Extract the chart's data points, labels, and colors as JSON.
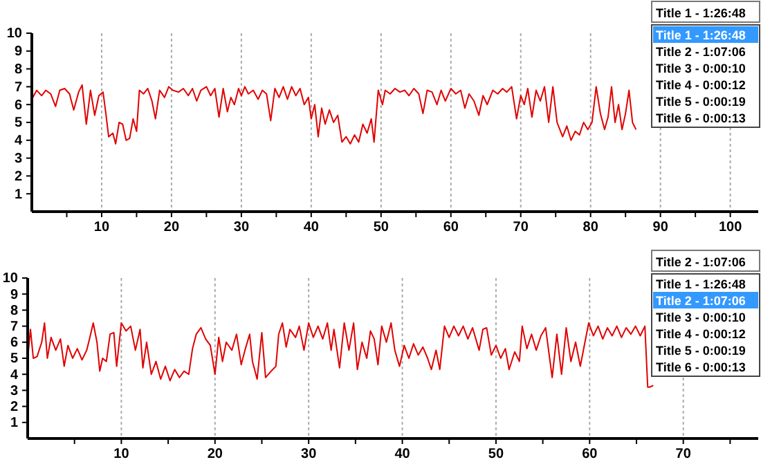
{
  "chart_data": [
    {
      "type": "line",
      "grid": "x",
      "xlim": [
        0,
        104
      ],
      "ylim": [
        0,
        10
      ],
      "xticks": [
        {
          "value": 5,
          "label": null
        },
        10,
        {
          "value": 15,
          "label": null
        },
        20,
        {
          "value": 25,
          "label": null
        },
        30,
        {
          "value": 35,
          "label": null
        },
        40,
        {
          "value": 45,
          "label": null
        },
        50,
        {
          "value": 55,
          "label": null
        },
        60,
        {
          "value": 65,
          "label": null
        },
        70,
        {
          "value": 75,
          "label": null
        },
        80,
        {
          "value": 85,
          "label": null
        },
        90,
        {
          "value": 95,
          "label": null
        },
        100
      ],
      "yticks": [
        1,
        2,
        3,
        4,
        5,
        6,
        7,
        8,
        9,
        10
      ],
      "annotations": [
        "Title 1 - 1:26:48",
        "Title 1 - 1:26:48",
        "Title 2 - 1:07:06",
        "Title 3 - 0:00:10",
        "Title 4 - 0:00:12",
        "Title 5 - 0:00:19",
        "Title 6 - 0:00:13"
      ],
      "series": [
        {
          "color": "#e00000",
          "x": [
            0,
            0.7,
            1.4,
            2,
            2.7,
            3.4,
            4,
            4.7,
            5.4,
            6,
            6.7,
            7.2,
            7.8,
            8.4,
            9,
            9.6,
            10.2,
            10.6,
            11,
            11.6,
            12,
            12.5,
            13,
            13.5,
            14,
            14.5,
            15,
            15.4,
            16,
            16.6,
            17.2,
            17.7,
            18.3,
            19,
            19.6,
            20.2,
            21,
            21.7,
            22.4,
            23,
            23.6,
            24.2,
            25,
            25.6,
            26.2,
            26.8,
            27.4,
            28,
            28.5,
            29,
            29.6,
            30,
            30.5,
            31,
            31.7,
            32.4,
            33,
            33.6,
            34.2,
            34.8,
            35.4,
            36,
            36.6,
            37.2,
            37.8,
            38.4,
            39,
            39.6,
            40,
            40.5,
            41,
            41.5,
            42,
            42.6,
            43.2,
            43.8,
            44.4,
            45,
            45.6,
            46.2,
            46.8,
            47.4,
            48,
            48.6,
            49,
            49.6,
            50.2,
            50.6,
            51.3,
            52,
            52.7,
            53.4,
            54,
            54.7,
            55.4,
            56,
            56.6,
            57.3,
            58,
            58.6,
            59.2,
            60,
            60.7,
            61.4,
            62,
            62.6,
            63.3,
            64,
            64.6,
            65.2,
            66,
            66.7,
            67.4,
            68,
            68.7,
            69.4,
            70,
            70.5,
            71,
            71.6,
            72.2,
            72.8,
            73.4,
            74,
            74.6,
            75.2,
            75.6,
            76,
            76.6,
            77.2,
            77.8,
            78.4,
            79,
            79.6,
            80.2,
            80.8,
            81.4,
            82,
            82.5,
            83,
            83.5,
            84,
            84.5,
            85,
            85.5,
            86,
            86.5
          ],
          "values": [
            6.3,
            6.8,
            6.5,
            6.8,
            6.6,
            5.9,
            6.8,
            6.9,
            6.6,
            5.7,
            6.7,
            7.1,
            4.9,
            6.8,
            5.4,
            6.5,
            6.7,
            5.5,
            4.2,
            4.4,
            3.8,
            5.0,
            4.9,
            4.0,
            4.1,
            5.2,
            4.5,
            6.8,
            6.6,
            6.9,
            6.2,
            5.2,
            6.8,
            6.4,
            7.0,
            6.8,
            6.7,
            6.9,
            6.5,
            6.9,
            6.2,
            6.8,
            7.0,
            6.5,
            6.9,
            5.3,
            6.9,
            5.6,
            6.4,
            6.0,
            6.9,
            6.5,
            7.0,
            6.6,
            6.8,
            6.3,
            6.8,
            6.6,
            5.1,
            6.9,
            6.4,
            7.0,
            6.3,
            7.0,
            6.5,
            6.9,
            6.0,
            6.4,
            5.2,
            6.0,
            4.2,
            5.8,
            4.9,
            5.7,
            5.0,
            5.4,
            3.9,
            4.2,
            3.8,
            4.3,
            3.9,
            4.9,
            4.4,
            5.2,
            3.9,
            6.8,
            6.0,
            6.8,
            6.6,
            6.9,
            6.7,
            6.8,
            6.5,
            6.9,
            6.6,
            5.5,
            6.8,
            6.7,
            6.0,
            6.8,
            6.2,
            6.9,
            6.6,
            6.8,
            5.8,
            6.6,
            6.2,
            5.4,
            6.5,
            6.0,
            6.8,
            6.6,
            6.9,
            6.7,
            7.0,
            5.2,
            6.5,
            6.0,
            6.9,
            5.3,
            6.8,
            6.2,
            7.0,
            5.0,
            7.0,
            5.0,
            4.6,
            4.2,
            4.8,
            4.0,
            4.5,
            4.3,
            5.0,
            4.6,
            5.0,
            7.0,
            5.5,
            4.6,
            5.3,
            7.0,
            5.0,
            6.0,
            4.6,
            5.5,
            6.8,
            5.0,
            4.6
          ]
        }
      ]
    },
    {
      "type": "line",
      "grid": "x",
      "xlim": [
        0,
        78
      ],
      "ylim": [
        0,
        10
      ],
      "xticks": [
        {
          "value": 5,
          "label": null
        },
        10,
        {
          "value": 15,
          "label": null
        },
        20,
        {
          "value": 25,
          "label": null
        },
        30,
        {
          "value": 35,
          "label": null
        },
        40,
        {
          "value": 45,
          "label": null
        },
        50,
        {
          "value": 55,
          "label": null
        },
        60,
        {
          "value": 65,
          "label": null
        },
        70,
        {
          "value": 75,
          "label": null
        }
      ],
      "yticks": [
        1,
        2,
        3,
        4,
        5,
        6,
        7,
        8,
        9,
        10
      ],
      "annotations": [
        "Title 2 - 1:07:06",
        "Title 1 - 1:26:48",
        "Title 2 - 1:07:06",
        "Title 3 - 0:00:10",
        "Title 4 - 0:00:12",
        "Title 5 - 0:00:19",
        "Title 6 - 0:00:13"
      ],
      "series": [
        {
          "color": "#e00000",
          "x": [
            0,
            0.3,
            0.6,
            1,
            1.5,
            1.8,
            2.1,
            2.5,
            3,
            3.5,
            3.9,
            4.3,
            4.8,
            5.3,
            5.8,
            6.3,
            6.6,
            7,
            7.4,
            7.7,
            8,
            8.4,
            8.8,
            9.2,
            9.5,
            10,
            10.5,
            11,
            11.5,
            12,
            12.3,
            12.7,
            13.2,
            13.7,
            14.2,
            14.7,
            15.2,
            15.7,
            16.2,
            16.7,
            17.2,
            17.6,
            18,
            18.5,
            19,
            19.5,
            20,
            20.4,
            20.8,
            21.2,
            21.8,
            22.3,
            22.8,
            23.2,
            23.7,
            24,
            24.5,
            25,
            25.4,
            26,
            26.5,
            26.8,
            27.2,
            27.6,
            28,
            28.6,
            29,
            29.5,
            30,
            30.5,
            31,
            31.5,
            32,
            32.4,
            32.7,
            33.3,
            33.8,
            34.3,
            34.8,
            35.2,
            35.7,
            36.2,
            36.6,
            37,
            37.4,
            37.8,
            38.3,
            38.8,
            39.2,
            39.7,
            40.2,
            40.7,
            41.2,
            41.7,
            42.2,
            42.7,
            43.1,
            43.6,
            44,
            44.5,
            45,
            45.5,
            46,
            46.5,
            47,
            47.5,
            48.2,
            48.6,
            49,
            49.5,
            50,
            50.5,
            51,
            51.4,
            52,
            52.5,
            52.8,
            53.3,
            53.8,
            54.3,
            54.8,
            55.3,
            56,
            56.5,
            57,
            57.5,
            58,
            58.5,
            59,
            59.5,
            59.9,
            60.4,
            60.9,
            61.4,
            61.9,
            62.4,
            62.9,
            63.4,
            63.9,
            64.4,
            64.9,
            65.4,
            65.9,
            66.2,
            66.4,
            66.8
          ],
          "values": [
            5.0,
            6.8,
            5.0,
            5.1,
            6.0,
            7.2,
            5.0,
            6.3,
            5.5,
            6.2,
            4.5,
            5.8,
            5.0,
            5.6,
            4.9,
            5.5,
            6.2,
            7.2,
            6.0,
            4.2,
            5.0,
            4.8,
            6.5,
            6.6,
            4.5,
            7.2,
            6.7,
            7.0,
            5.5,
            6.8,
            4.4,
            6.0,
            4.0,
            4.8,
            3.7,
            4.5,
            3.6,
            4.3,
            3.8,
            4.2,
            4.0,
            5.6,
            6.5,
            6.9,
            6.2,
            5.8,
            4.0,
            6.3,
            4.8,
            6.0,
            5.5,
            6.5,
            4.6,
            5.5,
            6.5,
            4.8,
            3.7,
            6.6,
            3.8,
            4.2,
            4.5,
            6.5,
            7.2,
            5.7,
            6.8,
            6.3,
            7.0,
            5.5,
            7.2,
            6.3,
            7.0,
            6.2,
            7.2,
            5.5,
            6.8,
            4.4,
            7.2,
            5.5,
            7.2,
            4.3,
            6.0,
            5.0,
            6.7,
            6.2,
            4.6,
            7.0,
            6.0,
            7.2,
            5.5,
            4.5,
            5.8,
            5.0,
            5.9,
            5.2,
            5.7,
            5.0,
            4.3,
            5.5,
            4.3,
            7.0,
            6.3,
            7.0,
            6.4,
            7.0,
            6.2,
            6.9,
            5.5,
            6.8,
            6.9,
            5.2,
            5.8,
            5.0,
            5.6,
            4.3,
            5.4,
            4.8,
            7.0,
            5.6,
            6.5,
            5.5,
            6.4,
            6.9,
            3.8,
            6.5,
            4.0,
            6.9,
            4.8,
            6.0,
            4.5,
            6.0,
            7.2,
            6.4,
            7.0,
            6.2,
            6.9,
            6.4,
            7.0,
            6.3,
            6.9,
            6.5,
            7.0,
            6.4,
            7.0,
            3.2,
            3.2,
            3.3
          ]
        }
      ]
    }
  ]
}
